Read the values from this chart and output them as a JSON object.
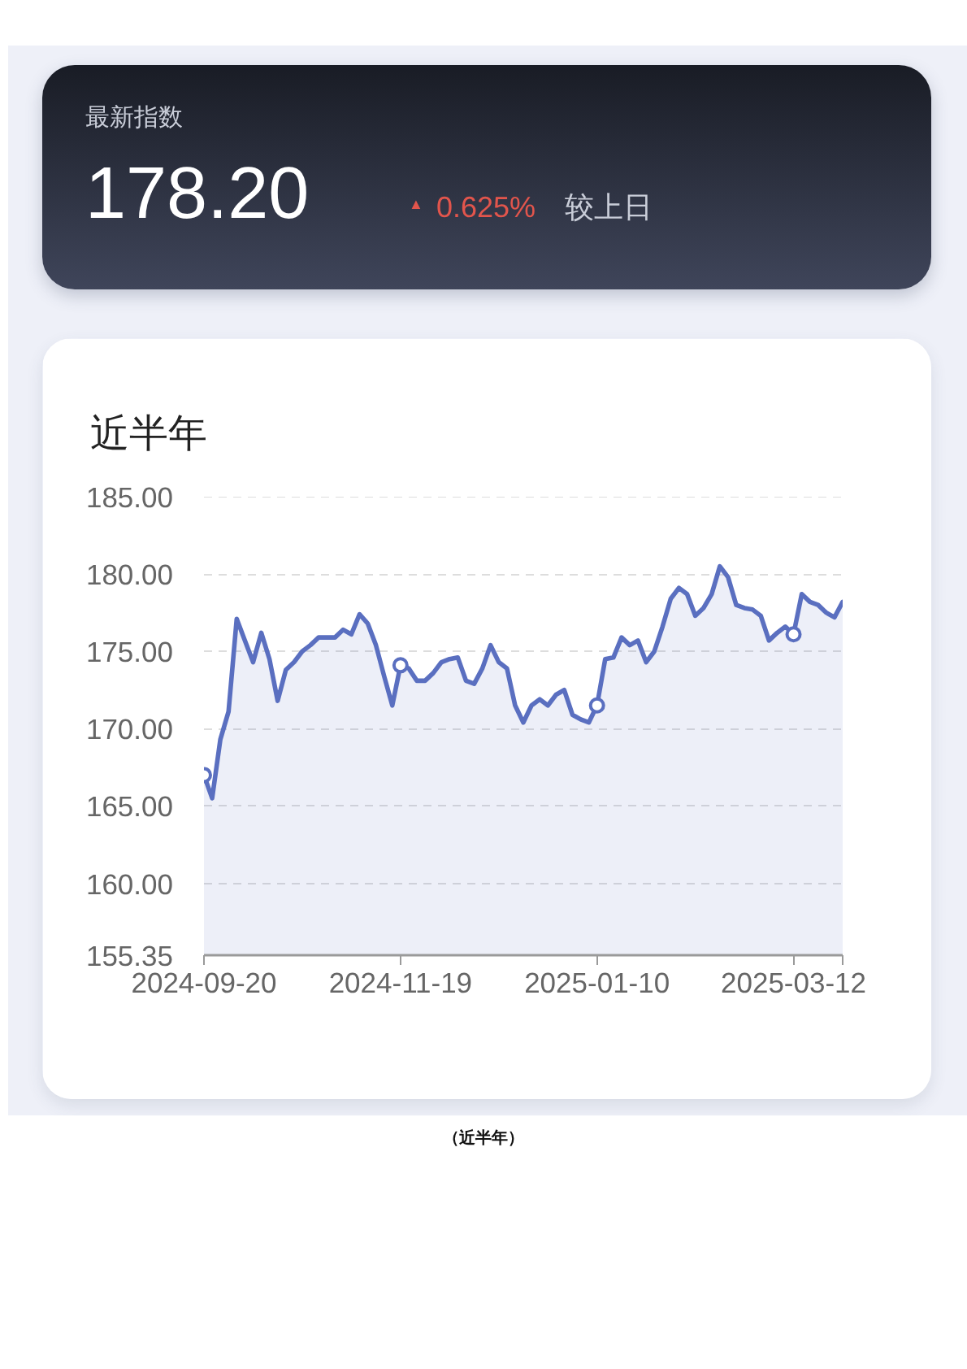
{
  "chart_data": [
    {
      "type": "other",
      "title": "最新指数",
      "annotations": [
        "178.20",
        "▲",
        "0.625%",
        "较上日"
      ]
    },
    {
      "type": "area",
      "title": "近半年",
      "categories": [
        "2024-09-20",
        null,
        null,
        null,
        null,
        null,
        null,
        null,
        null,
        null,
        null,
        null,
        null,
        null,
        null,
        null,
        null,
        null,
        null,
        null,
        null,
        null,
        null,
        null,
        "2024-11-19",
        null,
        null,
        null,
        null,
        null,
        null,
        null,
        null,
        null,
        null,
        null,
        null,
        null,
        null,
        null,
        null,
        null,
        null,
        null,
        null,
        null,
        null,
        null,
        "2025-01-10",
        null,
        null,
        null,
        null,
        null,
        null,
        null,
        null,
        null,
        null,
        null,
        null,
        null,
        null,
        null,
        null,
        null,
        null,
        null,
        null,
        null,
        null,
        null,
        "2025-03-12",
        null,
        null,
        null,
        null,
        null,
        null
      ],
      "series": [
        {
          "type": "area",
          "color": "#5a6fc0",
          "values": [
            167.0,
            165.5,
            169.3,
            171.1,
            177.1,
            175.7,
            174.3,
            176.2,
            174.5,
            171.8,
            173.8,
            174.3,
            175.0,
            175.4,
            175.9,
            175.9,
            175.9,
            176.4,
            176.1,
            177.4,
            176.8,
            175.4,
            173.4,
            171.5,
            174.1,
            173.9,
            173.1,
            173.1,
            173.6,
            174.3,
            174.5,
            174.6,
            173.1,
            172.9,
            173.9,
            175.4,
            174.3,
            173.9,
            171.5,
            170.4,
            171.5,
            171.9,
            171.5,
            172.2,
            172.5,
            170.9,
            170.6,
            170.4,
            171.5,
            174.5,
            174.6,
            175.9,
            175.4,
            175.7,
            174.3,
            175.0,
            176.6,
            178.4,
            179.1,
            178.7,
            177.3,
            177.8,
            178.7,
            180.5,
            179.8,
            178.0,
            177.8,
            177.7,
            177.3,
            175.7,
            176.2,
            176.6,
            176.1,
            178.7,
            178.2,
            178.0,
            177.5,
            177.2,
            178.2
          ]
        },
        {
          "type": "scatter",
          "color": "#5a6fc0",
          "marker": "circle",
          "values": [
            167.0,
            null,
            null,
            null,
            null,
            null,
            null,
            null,
            null,
            null,
            null,
            null,
            null,
            null,
            null,
            null,
            null,
            null,
            null,
            null,
            null,
            null,
            null,
            null,
            174.1,
            null,
            null,
            null,
            null,
            null,
            null,
            null,
            null,
            null,
            null,
            null,
            null,
            null,
            null,
            null,
            null,
            null,
            null,
            null,
            null,
            null,
            null,
            null,
            171.5,
            null,
            null,
            null,
            null,
            null,
            null,
            null,
            null,
            null,
            null,
            null,
            null,
            null,
            null,
            null,
            null,
            null,
            null,
            null,
            null,
            null,
            null,
            null,
            176.1,
            null,
            null,
            null,
            null,
            null,
            null
          ]
        }
      ],
      "ylim": [
        155.35,
        185
      ],
      "yticks": [
        155.35,
        {
          "value": 160,
          "label": "160.00"
        },
        {
          "value": 165,
          "label": "165.00"
        },
        {
          "value": 170,
          "label": "170.00"
        },
        {
          "value": 175,
          "label": "175.00"
        },
        {
          "value": 180,
          "label": "180.00"
        },
        {
          "value": 185,
          "label": "185.00"
        }
      ],
      "grid": "y",
      "line_style": "solid",
      "annotations": [
        "（近半年）"
      ]
    }
  ]
}
